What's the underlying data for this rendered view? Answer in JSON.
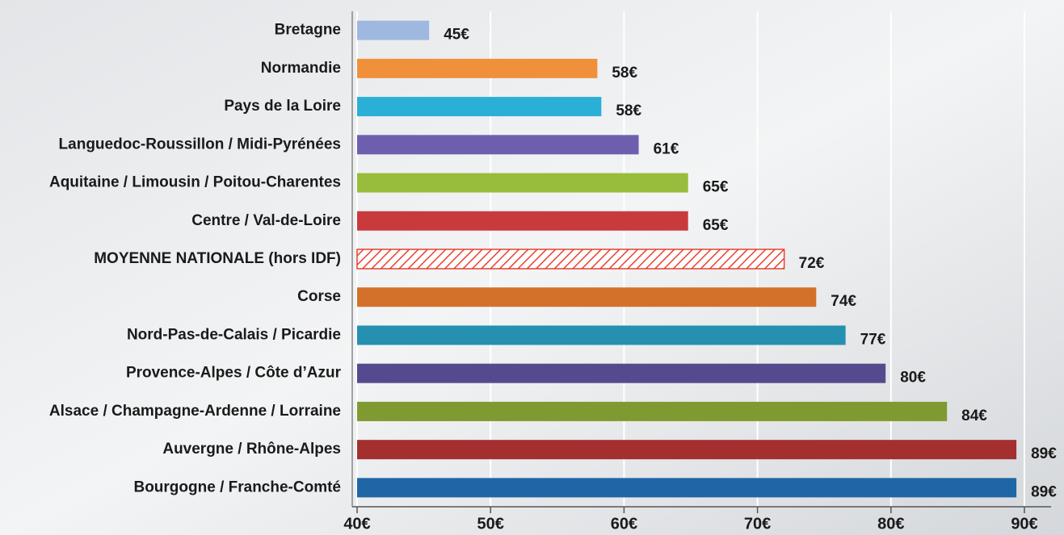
{
  "chart_data": {
    "type": "barh",
    "categories": [
      "Bretagne",
      "Normandie",
      "Pays de la Loire",
      "Languedoc-Roussillon / Midi-Pyrénées",
      "Aquitaine / Limousin / Poitou-Charentes",
      "Centre / Val-de-Loire",
      "MOYENNE NATIONALE (hors IDF)",
      "Corse",
      "Nord-Pas-de-Calais / Picardie",
      "Provence-Alpes / Côte d’Azur",
      "Alsace / Champagne-Ardenne / Lorraine",
      "Auvergne / Rhône-Alpes",
      "Bourgogne / Franche-Comté"
    ],
    "values": [
      45.4,
      58,
      58.3,
      61.1,
      64.8,
      64.8,
      72,
      74.4,
      76.6,
      79.6,
      84.2,
      89.4,
      89.4
    ],
    "value_labels": [
      "45€",
      "58€",
      "58€",
      "61€",
      "65€",
      "65€",
      "72€",
      "74€",
      "77€",
      "80€",
      "84€",
      "89€",
      "89€"
    ],
    "colors": [
      "#9fb8e0",
      "#f0903a",
      "#2aafd6",
      "#6e5fae",
      "#98bc3c",
      "#c93a3d",
      "#e8412f",
      "#d3712a",
      "#2590b0",
      "#564a8f",
      "#7f9a31",
      "#a3302f",
      "#1f66a6"
    ],
    "hatched": [
      false,
      false,
      false,
      false,
      false,
      false,
      true,
      false,
      false,
      false,
      false,
      false,
      false
    ],
    "xlim": [
      40,
      92
    ],
    "xticks": [
      {
        "value": 40,
        "label": "40€"
      },
      {
        "value": 50,
        "label": "50€"
      },
      {
        "value": 60,
        "label": "60€"
      },
      {
        "value": 70,
        "label": "70€"
      },
      {
        "value": 80,
        "label": "80€"
      },
      {
        "value": 90,
        "label": "90€"
      }
    ],
    "grid": true
  }
}
